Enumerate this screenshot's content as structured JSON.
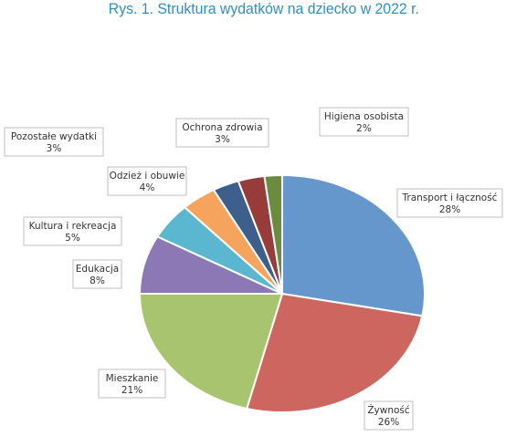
{
  "chart_data": {
    "type": "pie",
    "title": "Rys. 1. Struktura wydatków na dziecko w 2022 r.",
    "slices": [
      {
        "label": "Transport i łączność",
        "value": 28,
        "value_label": "28%",
        "color": "#6597cc"
      },
      {
        "label": "Żywność",
        "value": 26,
        "value_label": "26%",
        "color": "#cc665f"
      },
      {
        "label": "Mieszkanie",
        "value": 21,
        "value_label": "21%",
        "color": "#a9c46e"
      },
      {
        "label": "Edukacja",
        "value": 8,
        "value_label": "8%",
        "color": "#8c78b4"
      },
      {
        "label": "Kultura i rekreacja",
        "value": 5,
        "value_label": "5%",
        "color": "#5bb7cf"
      },
      {
        "label": "Odzież i obuwie",
        "value": 4,
        "value_label": "4%",
        "color": "#f6a45d"
      },
      {
        "label": "Pozostałe wydatki",
        "value": 3,
        "value_label": "3%",
        "color": "#3c5f8c"
      },
      {
        "label": "Ochrona zdrowia",
        "value": 3,
        "value_label": "3%",
        "color": "#973b3b"
      },
      {
        "label": "Higiena osobista",
        "value": 2,
        "value_label": "2%",
        "color": "#6d8b3e"
      }
    ],
    "start_angle_deg": 0,
    "direction": "clockwise",
    "legend": "none"
  }
}
